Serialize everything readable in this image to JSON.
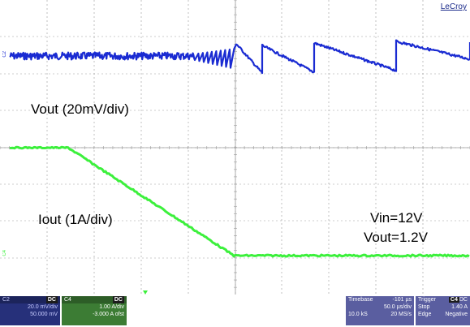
{
  "brand": "LeCroy",
  "annotations": {
    "vout_scale": "Vout (20mV/div)",
    "iout_scale": "Iout (1A/div)",
    "vin": "Vin=12V",
    "vout": "Vout=1.2V"
  },
  "channel_markers": {
    "c2": "C2",
    "c4": "C4"
  },
  "colors": {
    "c2": "#1a2bd2",
    "c4": "#3cf03c",
    "grid": "#9a9a9a",
    "c2_box": "#26307a",
    "c4_box": "#3c7c34",
    "info_box": "#5a5ea0"
  },
  "status": {
    "c2": {
      "label": "C2",
      "coupling": "DC",
      "vdiv": "20.0 mV/div",
      "offset": "50.000 mV"
    },
    "c4": {
      "label": "C4",
      "coupling": "DC",
      "vdiv": "1.00 A/div",
      "offset": "-3.000 A ofst"
    },
    "timebase": {
      "label": "Timebase",
      "delay": "-101 µs",
      "tdiv": "50.0 µs/div",
      "samples": "10.0 kS",
      "rate": "20 MS/s"
    },
    "trigger": {
      "label": "Trigger",
      "channel": "C4",
      "coupling": "DC",
      "mode": "Stop",
      "level": "1.40 A",
      "type": "Edge",
      "slope": "Negative"
    }
  }
}
